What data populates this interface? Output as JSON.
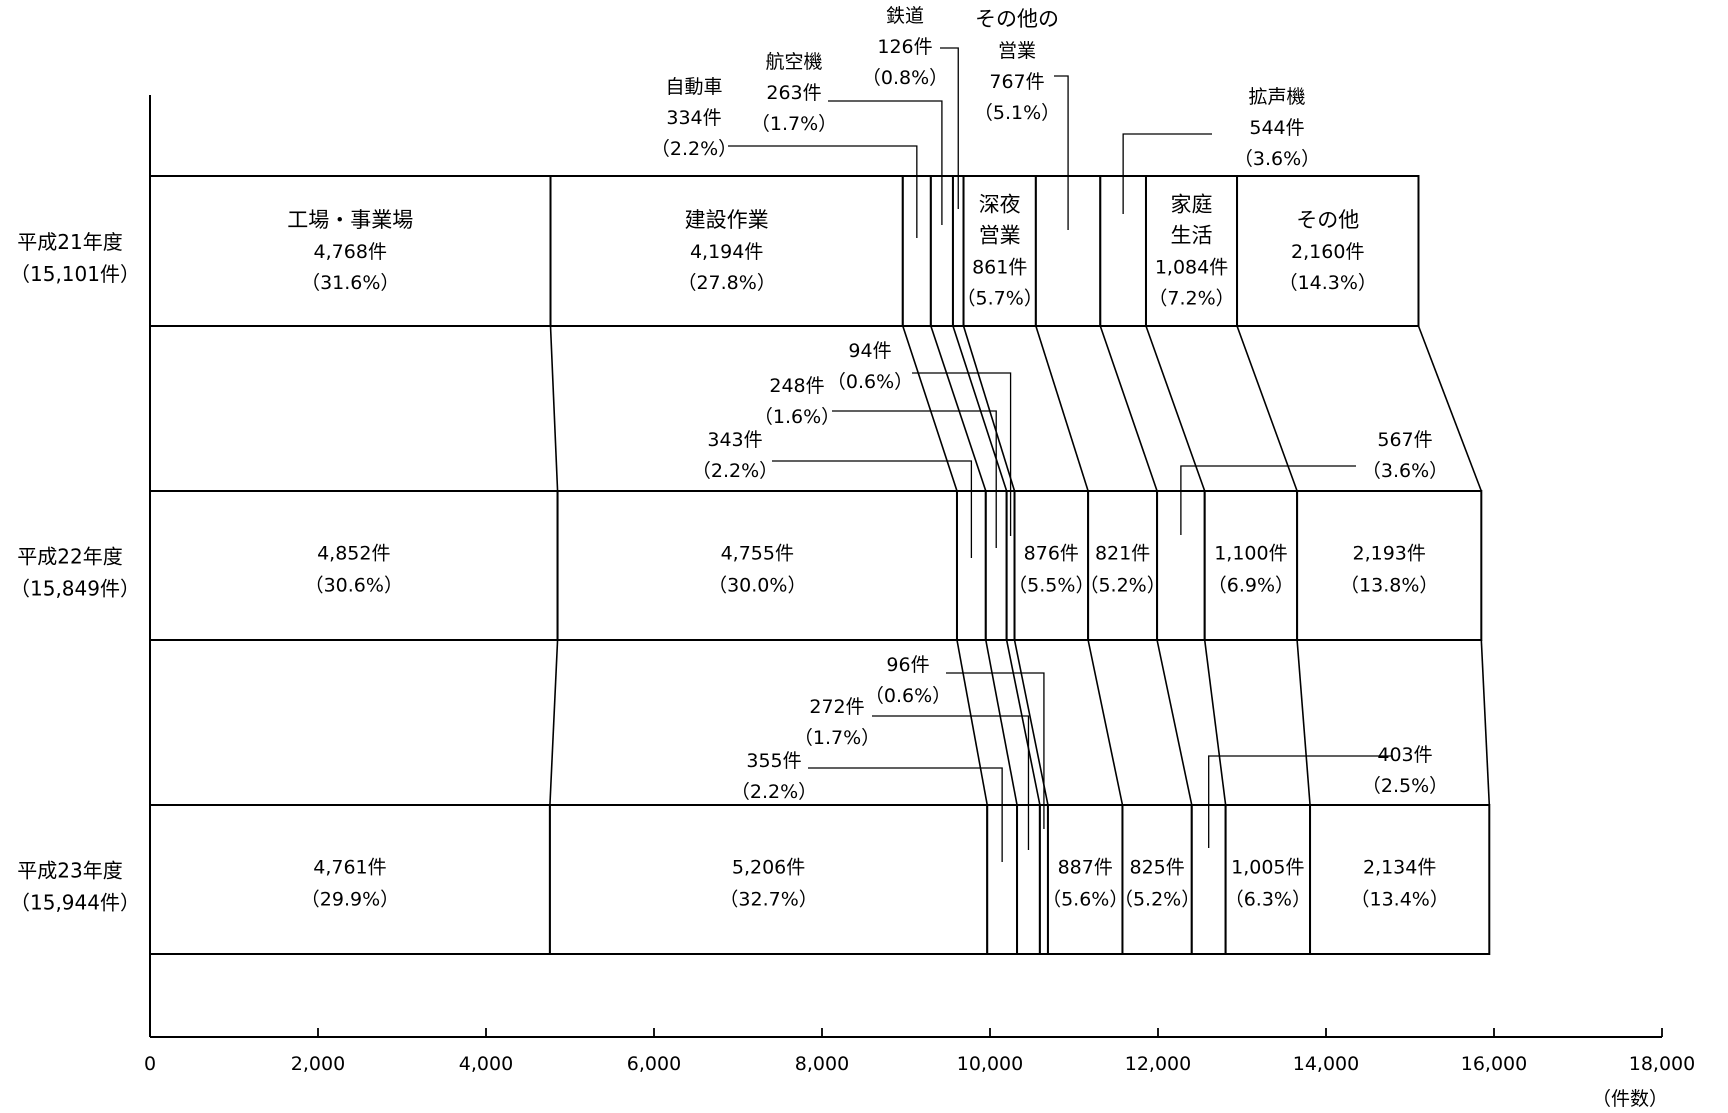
{
  "chart_data": {
    "type": "bar",
    "orientation": "horizontal-stacked",
    "xlim": [
      0,
      18000
    ],
    "xticks": [
      "0",
      "2,000",
      "4,000",
      "6,000",
      "8,000",
      "10,000",
      "12,000",
      "14,000",
      "16,000",
      "18,000"
    ],
    "xunit": "（件数）",
    "rows": [
      {
        "label": "平成21年度",
        "total_label": "（15,101件）",
        "total": 15101,
        "segments": [
          {
            "category": "工場・事業場",
            "value": 4768,
            "count": "4,768件",
            "pct": "（31.6%）"
          },
          {
            "category": "建設作業",
            "value": 4194,
            "count": "4,194件",
            "pct": "（27.8%）"
          },
          {
            "category": "自動車",
            "value": 334,
            "count": "334件",
            "pct": "（2.2%）"
          },
          {
            "category": "航空機",
            "value": 263,
            "count": "263件",
            "pct": "（1.7%）"
          },
          {
            "category": "鉄道",
            "value": 126,
            "count": "126件",
            "pct": "（0.8%）"
          },
          {
            "category": "深夜営業",
            "value": 861,
            "count": "861件",
            "pct": "（5.7%）"
          },
          {
            "category": "その他の営業",
            "value": 767,
            "count": "767件",
            "pct": "（5.1%）"
          },
          {
            "category": "拡声機",
            "value": 544,
            "count": "544件",
            "pct": "（3.6%）"
          },
          {
            "category": "家庭生活",
            "value": 1084,
            "count": "1,084件",
            "pct": "（7.2%）"
          },
          {
            "category": "その他",
            "value": 2160,
            "count": "2,160件",
            "pct": "（14.3%）"
          }
        ]
      },
      {
        "label": "平成22年度",
        "total_label": "（15,849件）",
        "total": 15849,
        "segments": [
          {
            "category": "工場・事業場",
            "value": 4852,
            "count": "4,852件",
            "pct": "（30.6%）"
          },
          {
            "category": "建設作業",
            "value": 4755,
            "count": "4,755件",
            "pct": "（30.0%）"
          },
          {
            "category": "自動車",
            "value": 343,
            "count": "343件",
            "pct": "（2.2%）"
          },
          {
            "category": "航空機",
            "value": 248,
            "count": "248件",
            "pct": "（1.6%）"
          },
          {
            "category": "鉄道",
            "value": 94,
            "count": "94件",
            "pct": "（0.6%）"
          },
          {
            "category": "深夜営業",
            "value": 876,
            "count": "876件",
            "pct": "（5.5%）"
          },
          {
            "category": "その他の営業",
            "value": 821,
            "count": "821件",
            "pct": "（5.2%）"
          },
          {
            "category": "拡声機",
            "value": 567,
            "count": "567件",
            "pct": "（3.6%）"
          },
          {
            "category": "家庭生活",
            "value": 1100,
            "count": "1,100件",
            "pct": "（6.9%）"
          },
          {
            "category": "その他",
            "value": 2193,
            "count": "2,193件",
            "pct": "（13.8%）"
          }
        ]
      },
      {
        "label": "平成23年度",
        "total_label": "（15,944件）",
        "total": 15944,
        "segments": [
          {
            "category": "工場・事業場",
            "value": 4761,
            "count": "4,761件",
            "pct": "（29.9%）"
          },
          {
            "category": "建設作業",
            "value": 5206,
            "count": "5,206件",
            "pct": "（32.7%）"
          },
          {
            "category": "自動車",
            "value": 355,
            "count": "355件",
            "pct": "（2.2%）"
          },
          {
            "category": "航空機",
            "value": 272,
            "count": "272件",
            "pct": "（1.7%）"
          },
          {
            "category": "鉄道",
            "value": 96,
            "count": "96件",
            "pct": "（0.6%）"
          },
          {
            "category": "深夜営業",
            "value": 887,
            "count": "887件",
            "pct": "（5.6%）"
          },
          {
            "category": "その他の営業",
            "value": 825,
            "count": "825件",
            "pct": "（5.2%）"
          },
          {
            "category": "拡声機",
            "value": 403,
            "count": "403件",
            "pct": "（2.5%）"
          },
          {
            "category": "家庭生活",
            "value": 1005,
            "count": "1,005件",
            "pct": "（6.3%）"
          },
          {
            "category": "その他",
            "value": 2134,
            "count": "2,134件",
            "pct": "（13.4%）"
          }
        ]
      }
    ],
    "category_labels": {
      "工場・事業場": [
        "工場・事業場"
      ],
      "建設作業": [
        "建設作業"
      ],
      "自動車": [
        "自動車"
      ],
      "航空機": [
        "航空機"
      ],
      "鉄道": [
        "鉄道"
      ],
      "深夜営業": [
        "深夜",
        "営業"
      ],
      "その他の営業": [
        "その他の",
        "営業"
      ],
      "拡声機": [
        "拡声機"
      ],
      "家庭生活": [
        "家庭",
        "生活"
      ],
      "その他": [
        "その他"
      ]
    }
  }
}
